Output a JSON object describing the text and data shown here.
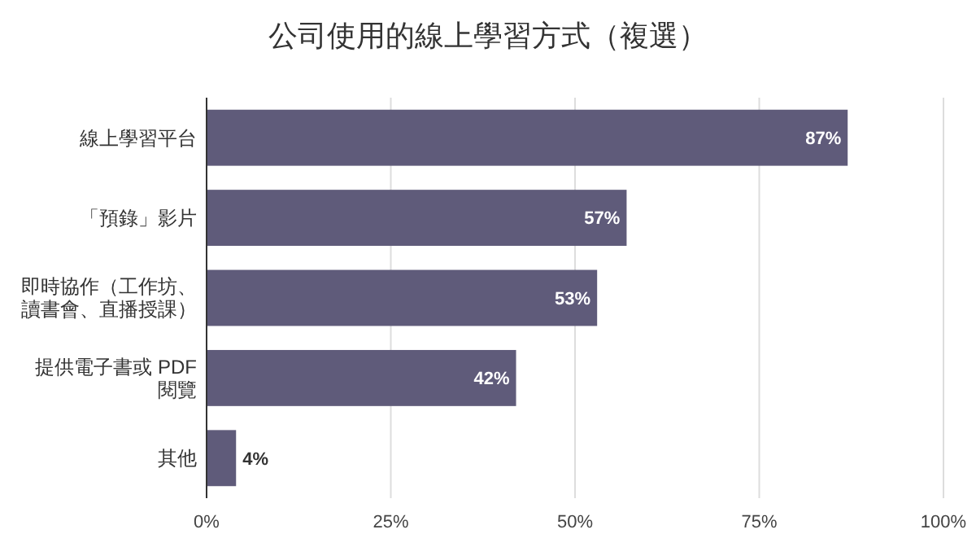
{
  "chart_data": {
    "type": "bar",
    "orientation": "horizontal",
    "title": "公司使用的線上學習方式（複選）",
    "categories": [
      "線上學習平台",
      "「預錄」影片",
      "即時協作（工作坊、讀書會、直播授課）",
      "提供電子書或 PDF閱覽",
      "其他"
    ],
    "values": [
      87,
      57,
      53,
      42,
      4
    ],
    "value_labels": [
      "87%",
      "57%",
      "53%",
      "42%",
      "4%"
    ],
    "color": "#5f5b7a",
    "xlim": [
      0,
      100
    ],
    "xticks": [
      {
        "value": 0,
        "label": "0%"
      },
      {
        "value": 25,
        "label": "25%"
      },
      {
        "value": 50,
        "label": "50%"
      },
      {
        "value": 75,
        "label": "75%"
      },
      {
        "value": 100,
        "label": "100%"
      }
    ],
    "grid": "x"
  }
}
